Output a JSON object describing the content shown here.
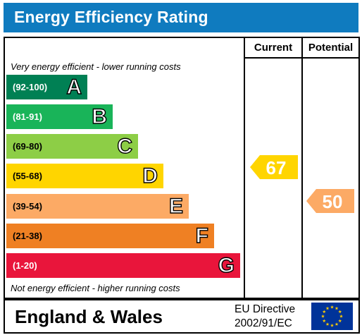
{
  "title": "Energy Efficiency Rating",
  "columns": {
    "current": "Current",
    "potential": "Potential"
  },
  "notes": {
    "top": "Very energy efficient - lower running costs",
    "bottom": "Not energy efficient - higher running costs"
  },
  "bands": [
    {
      "range": "(92-100)",
      "letter": "A",
      "color": "#008054"
    },
    {
      "range": "(81-91)",
      "letter": "B",
      "color": "#19b459"
    },
    {
      "range": "(69-80)",
      "letter": "C",
      "color": "#8dce46"
    },
    {
      "range": "(55-68)",
      "letter": "D",
      "color": "#ffd500"
    },
    {
      "range": "(39-54)",
      "letter": "E",
      "color": "#fcaa65"
    },
    {
      "range": "(21-38)",
      "letter": "F",
      "color": "#ef8023"
    },
    {
      "range": "(1-20)",
      "letter": "G",
      "color": "#e9153b"
    }
  ],
  "current": {
    "value": "67",
    "band": "D",
    "color": "#ffd500"
  },
  "potential": {
    "value": "50",
    "band": "E",
    "color": "#fcaa65"
  },
  "footer": {
    "country": "England & Wales",
    "directive_line1": "EU Directive",
    "directive_line2": "2002/91/EC"
  },
  "colors": {
    "title_bar": "#0f7bbf",
    "eu_flag": "#003399",
    "eu_stars": "#ffcc00"
  },
  "icons": {
    "flag": "eu-flag-icon"
  }
}
